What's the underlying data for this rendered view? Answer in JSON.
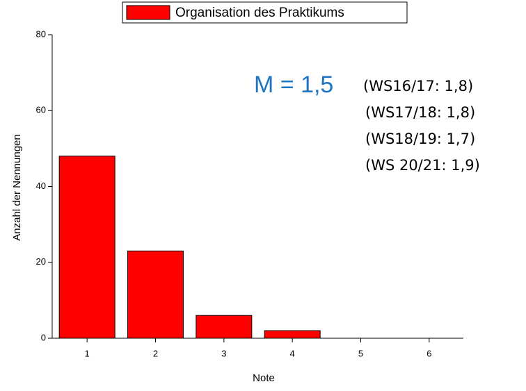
{
  "chart_data": {
    "type": "bar",
    "legend": "Organisation des Praktikums",
    "x_label": "Note",
    "y_label": "Anzahl der Nennungen",
    "categories": [
      "1",
      "2",
      "3",
      "4",
      "5",
      "6"
    ],
    "values": [
      48,
      23,
      6,
      2,
      0,
      0
    ],
    "color": "#ff0000",
    "ylim": [
      0,
      80
    ],
    "yticks": [
      0,
      20,
      40,
      60,
      80
    ],
    "legend_position": "top",
    "annotations": [
      "M = 1,5",
      "(WS16/17: 1,8)",
      "(WS17/18: 1,8)",
      "(WS18/19: 1,7)",
      "(WS 20/21: 1,9)"
    ]
  }
}
